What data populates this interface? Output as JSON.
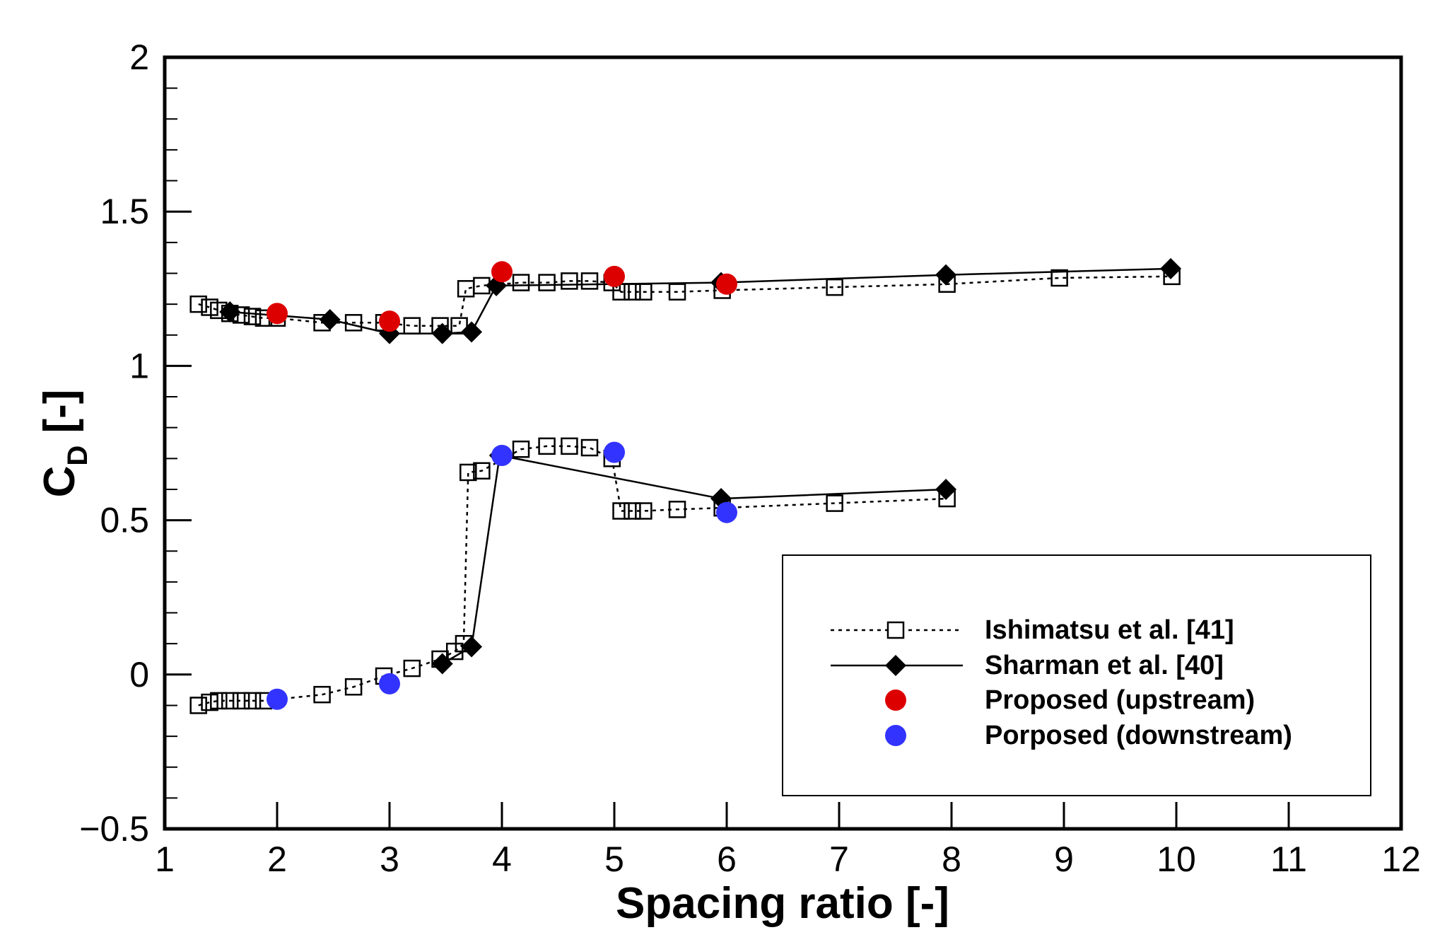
{
  "chart_data": {
    "type": "scatter",
    "title": "",
    "xlabel": "Spacing ratio [-]",
    "ylabel_main": "C",
    "ylabel_sub": "D",
    "ylabel_suffix": " [-]",
    "xlim": [
      1,
      12
    ],
    "ylim": [
      -0.5,
      2
    ],
    "x_ticks": [
      1,
      2,
      3,
      4,
      5,
      6,
      7,
      8,
      9,
      10,
      11,
      12
    ],
    "x_tick_labels": [
      "1",
      "2",
      "3",
      "4",
      "5",
      "6",
      "7",
      "8",
      "9",
      "10",
      "11",
      "12"
    ],
    "y_ticks": [
      -0.5,
      0,
      0.5,
      1,
      1.5,
      2
    ],
    "y_tick_labels": [
      "−0.5",
      "0",
      "0.5",
      "1",
      "1.5",
      "2"
    ],
    "x_minor_step": 1,
    "y_minor_step": 0.1,
    "legend_position": "bottom-right",
    "series": [
      {
        "name": "Ishimatsu et al. [41]",
        "marker": "open-square",
        "line": "dotted",
        "color": "#000000",
        "segments": [
          {
            "x": [
              1.3,
              1.4,
              1.48,
              1.58,
              1.68,
              1.78,
              1.88,
              2.0,
              2.4,
              2.68,
              2.95,
              3.2,
              3.45,
              3.62,
              3.68,
              3.82,
              4.17,
              4.4,
              4.6,
              4.78,
              4.98,
              5.06,
              5.16,
              5.26,
              5.56,
              5.96,
              6.96,
              7.96,
              8.96,
              9.96
            ],
            "y": [
              1.2,
              1.19,
              1.18,
              1.17,
              1.165,
              1.16,
              1.155,
              1.155,
              1.14,
              1.14,
              1.14,
              1.13,
              1.13,
              1.13,
              1.25,
              1.26,
              1.27,
              1.27,
              1.275,
              1.275,
              1.27,
              1.24,
              1.24,
              1.24,
              1.24,
              1.245,
              1.255,
              1.265,
              1.285,
              1.29
            ]
          },
          {
            "x": [
              1.3,
              1.4,
              1.48,
              1.58,
              1.68,
              1.78,
              1.88,
              2.4,
              2.68,
              2.95,
              3.2,
              3.45,
              3.58,
              3.66,
              3.7,
              3.82,
              4.17,
              4.4,
              4.6,
              4.78,
              4.98,
              5.06,
              5.16,
              5.26,
              5.56,
              5.96,
              6.96,
              7.96
            ],
            "y": [
              -0.1,
              -0.09,
              -0.085,
              -0.085,
              -0.085,
              -0.085,
              -0.085,
              -0.065,
              -0.04,
              -0.005,
              0.02,
              0.05,
              0.075,
              0.1,
              0.655,
              0.66,
              0.73,
              0.74,
              0.74,
              0.735,
              0.7,
              0.53,
              0.53,
              0.53,
              0.535,
              0.54,
              0.555,
              0.57
            ]
          }
        ]
      },
      {
        "name": "Sharman et al. [40]",
        "marker": "filled-diamond",
        "line": "solid",
        "color": "#000000",
        "segments": [
          {
            "x": [
              1.58,
              2.47,
              3.0,
              3.47,
              3.73,
              3.95,
              5.95,
              7.95,
              9.95
            ],
            "y": [
              1.175,
              1.15,
              1.105,
              1.105,
              1.11,
              1.26,
              1.27,
              1.295,
              1.315
            ]
          },
          {
            "x": [
              3.47,
              3.73,
              3.98,
              5.95,
              7.95
            ],
            "y": [
              0.035,
              0.09,
              0.71,
              0.57,
              0.6
            ]
          }
        ]
      },
      {
        "name": "Proposed (upstream)",
        "marker": "filled-circle",
        "line": "none",
        "color": "#dd0000",
        "segments": [
          {
            "x": [
              2,
              3,
              4,
              5,
              6
            ],
            "y": [
              1.17,
              1.145,
              1.305,
              1.29,
              1.265
            ]
          }
        ]
      },
      {
        "name": "Porposed (downstream)",
        "marker": "filled-circle",
        "line": "none",
        "color": "#3333ff",
        "segments": [
          {
            "x": [
              2,
              3,
              4,
              5,
              6
            ],
            "y": [
              -0.08,
              -0.03,
              0.71,
              0.72,
              0.525
            ]
          }
        ]
      }
    ]
  }
}
